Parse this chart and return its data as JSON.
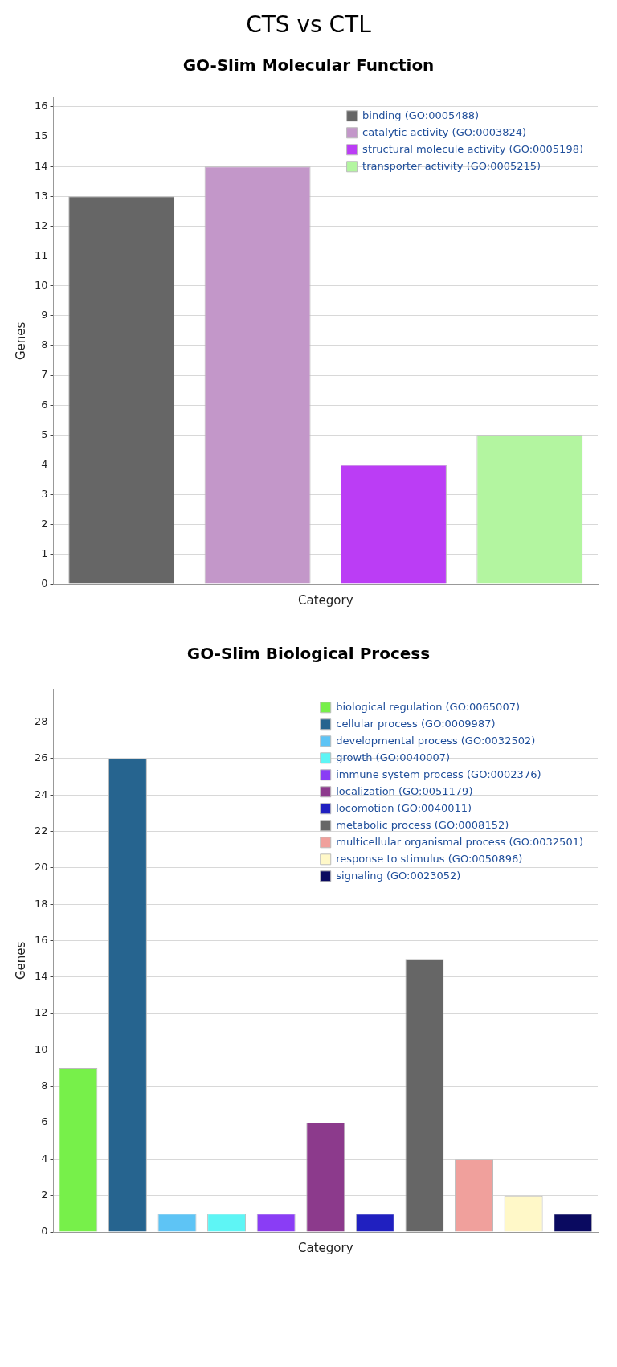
{
  "chart_data": [
    {
      "type": "bar",
      "title": "CTS vs CTL",
      "subtitle": "GO-Slim Molecular Function",
      "xlabel": "Category",
      "ylabel": "Genes",
      "categories": [
        null,
        null,
        null,
        null
      ],
      "series": [
        {
          "name": "binding (GO:0005488)",
          "color": "#666666",
          "values": [
            13,
            null,
            null,
            null
          ]
        },
        {
          "name": "catalytic activity (GO:0003824)",
          "color": "#c397c9",
          "values": [
            null,
            14,
            null,
            null
          ]
        },
        {
          "name": "structural molecule activity (GO:0005198)",
          "color": "#bb3df5",
          "values": [
            null,
            null,
            4,
            null
          ]
        },
        {
          "name": "transporter activity (GO:0005215)",
          "color": "#b3f5a0",
          "values": [
            null,
            null,
            null,
            5
          ]
        }
      ],
      "ylim": [
        0,
        16.3
      ],
      "yticks": [
        0,
        1,
        2,
        3,
        4,
        5,
        6,
        7,
        8,
        9,
        10,
        11,
        12,
        13,
        14,
        15,
        16
      ],
      "grid": "y",
      "legend": "top right",
      "tick_labels": "y"
    },
    {
      "type": "bar",
      "title": "GO-Slim Biological Process",
      "xlabel": "Category",
      "ylabel": "Genes",
      "categories": [
        null,
        null,
        null,
        null,
        null,
        null,
        null,
        null,
        null,
        null,
        null
      ],
      "series": [
        {
          "name": "biological regulation (GO:0065007)",
          "color": "#77f04a",
          "values": [
            9,
            null,
            null,
            null,
            null,
            null,
            null,
            null,
            null,
            null,
            null
          ]
        },
        {
          "name": "cellular process (GO:0009987)",
          "color": "#26648f",
          "values": [
            null,
            26,
            null,
            null,
            null,
            null,
            null,
            null,
            null,
            null,
            null
          ]
        },
        {
          "name": "developmental process (GO:0032502)",
          "color": "#5ec4f5",
          "values": [
            null,
            null,
            1,
            null,
            null,
            null,
            null,
            null,
            null,
            null,
            null
          ]
        },
        {
          "name": "growth (GO:0040007)",
          "color": "#5ef5f5",
          "values": [
            null,
            null,
            null,
            1,
            null,
            null,
            null,
            null,
            null,
            null,
            null
          ]
        },
        {
          "name": "immune system process (GO:0002376)",
          "color": "#8a3df5",
          "values": [
            null,
            null,
            null,
            null,
            1,
            null,
            null,
            null,
            null,
            null,
            null
          ]
        },
        {
          "name": "localization (GO:0051179)",
          "color": "#8c3a8c",
          "values": [
            null,
            null,
            null,
            null,
            null,
            6,
            null,
            null,
            null,
            null,
            null
          ]
        },
        {
          "name": "locomotion (GO:0040011)",
          "color": "#2020c0",
          "values": [
            null,
            null,
            null,
            null,
            null,
            null,
            1,
            null,
            null,
            null,
            null
          ]
        },
        {
          "name": "metabolic process (GO:0008152)",
          "color": "#666666",
          "values": [
            null,
            null,
            null,
            null,
            null,
            null,
            null,
            15,
            null,
            null,
            null
          ]
        },
        {
          "name": "multicellular organismal process (GO:0032501)",
          "color": "#f0a09c",
          "values": [
            null,
            null,
            null,
            null,
            null,
            null,
            null,
            null,
            4,
            null,
            null
          ]
        },
        {
          "name": "response to stimulus (GO:0050896)",
          "color": "#fff8c8",
          "values": [
            null,
            null,
            null,
            null,
            null,
            null,
            null,
            null,
            null,
            2,
            null
          ]
        },
        {
          "name": "signaling (GO:0023052)",
          "color": "#0a0a60",
          "values": [
            null,
            null,
            null,
            null,
            null,
            null,
            null,
            null,
            null,
            null,
            1
          ]
        }
      ],
      "ylim": [
        0,
        29.8
      ],
      "yticks": [
        0,
        2,
        4,
        6,
        8,
        10,
        12,
        14,
        16,
        18,
        20,
        22,
        24,
        26,
        28
      ],
      "grid": "y",
      "legend": "top right",
      "tick_labels": "y"
    }
  ]
}
